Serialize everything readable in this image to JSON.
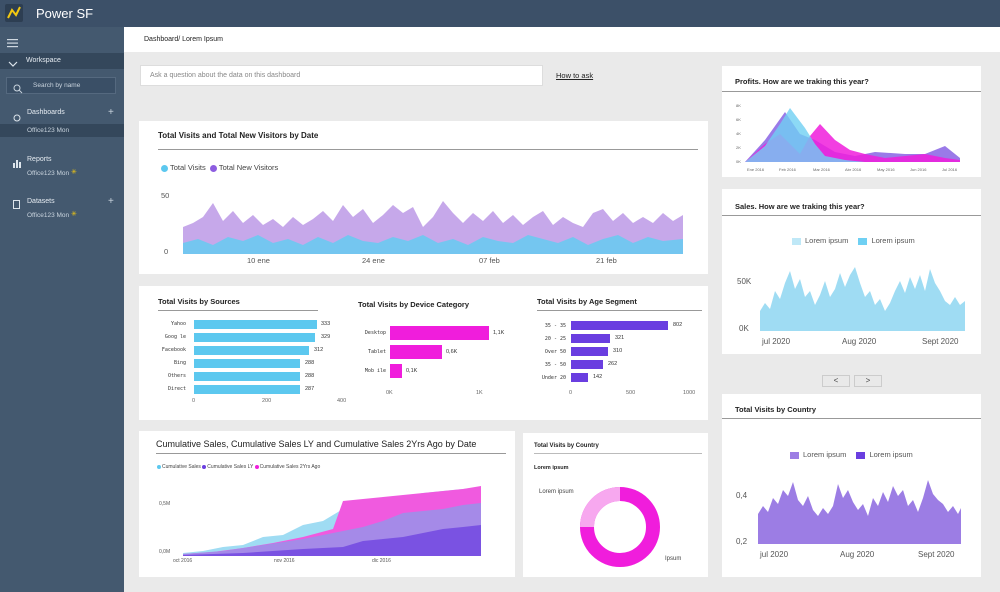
{
  "app": {
    "title": "Power SF"
  },
  "sidebar": {
    "workspace": "Workspace",
    "search_placeholder": "Search by name",
    "sections": [
      {
        "label": "Dashboards",
        "item": "Office123 Mon"
      },
      {
        "label": "Reports",
        "item": "Office123 Mon"
      },
      {
        "label": "Datasets",
        "item": "Office123 Mon"
      }
    ]
  },
  "breadcrumb": "Dashboard/ Lorem Ipsum",
  "qa": {
    "placeholder": "Ask a question about the data on this dashboard",
    "link": "How to ask"
  },
  "visits_by_date": {
    "title": "Total Visits and Total New Visitors by Date",
    "legend": [
      "Total Visits",
      "Total New Visitors"
    ],
    "y_ticks": [
      "50",
      "0"
    ],
    "x_ticks": [
      "10 ene",
      "24 ene",
      "07 feb",
      "21 feb"
    ]
  },
  "sources": {
    "title": "Total Visits by Sources",
    "categories": [
      "Yahoo",
      "Goog le",
      "Facebook",
      "Bing",
      "Others",
      "Direct"
    ],
    "values": [
      "333",
      "329",
      "312",
      "288",
      "288",
      "287"
    ],
    "x_ticks": [
      "0",
      "200",
      "400"
    ]
  },
  "device": {
    "title": "Total Visits by Device Category",
    "categories": [
      "Desktop",
      "Tablet",
      "Mob ile"
    ],
    "values": [
      "1,1K",
      "0,6K",
      "0,1K"
    ],
    "x_ticks": [
      "0K",
      "1K"
    ]
  },
  "age": {
    "title": "Total Visits by Age Segment",
    "categories": [
      "35 - 35",
      "20 - 25",
      "Over 50",
      "35 - 50",
      "Under 20"
    ],
    "values": [
      "802",
      "321",
      "310",
      "262",
      "142"
    ],
    "x_ticks": [
      "0",
      "500",
      "1000"
    ]
  },
  "cumulative": {
    "title": "Cumulative Sales, Cumulative Sales LY and Cumulative Sales 2Yrs Ago by Date",
    "legend": [
      "Cumulative Sales",
      "Cumulative Sales LY",
      "Cumulative Sales 2Yrs Ago"
    ],
    "y_ticks": [
      "0,5M",
      "0,0M"
    ],
    "x_ticks": [
      "oct 2016",
      "nov 2016",
      "dic 2016"
    ]
  },
  "country_donut": {
    "title": "Total Visits by Country",
    "subtitle": "Lorem ipsum",
    "label_a": "Lorem ipsum",
    "label_b": "Ipsum"
  },
  "profits": {
    "title": "Profits. How are we traking this year?",
    "y_ticks": [
      "8K",
      "6K",
      "4K",
      "2K",
      "0K"
    ],
    "x_ticks": [
      "Ene 2016",
      "Feb 2016",
      "Mar 2016",
      "Abr 2016",
      "May 2016",
      "Jun 2016",
      "Jul 2016"
    ]
  },
  "sales": {
    "title": "Sales. How are we traking this year?",
    "legend": [
      "Lorem ipsum",
      "Lorem ipsum"
    ],
    "y_ticks": [
      "50K",
      "0K"
    ],
    "x_ticks": [
      "jul 2020",
      "Aug 2020",
      "Sept 2020"
    ],
    "nav_prev": "<",
    "nav_next": ">"
  },
  "country": {
    "title": "Total Visits by Country",
    "legend": [
      "Lorem ipsum",
      "Lorem ipsum"
    ],
    "y_ticks": [
      "0,4",
      "0,2"
    ],
    "x_ticks": [
      "jul 2020",
      "Aug 2020",
      "Sept 2020"
    ]
  },
  "colors": {
    "cyan": "#5cc8ef",
    "purple": "#9b6be0",
    "magenta": "#f01ddc",
    "lavender": "#c3a8ec",
    "violet": "#6a3ee0",
    "sky": "#9fdcf3"
  }
}
